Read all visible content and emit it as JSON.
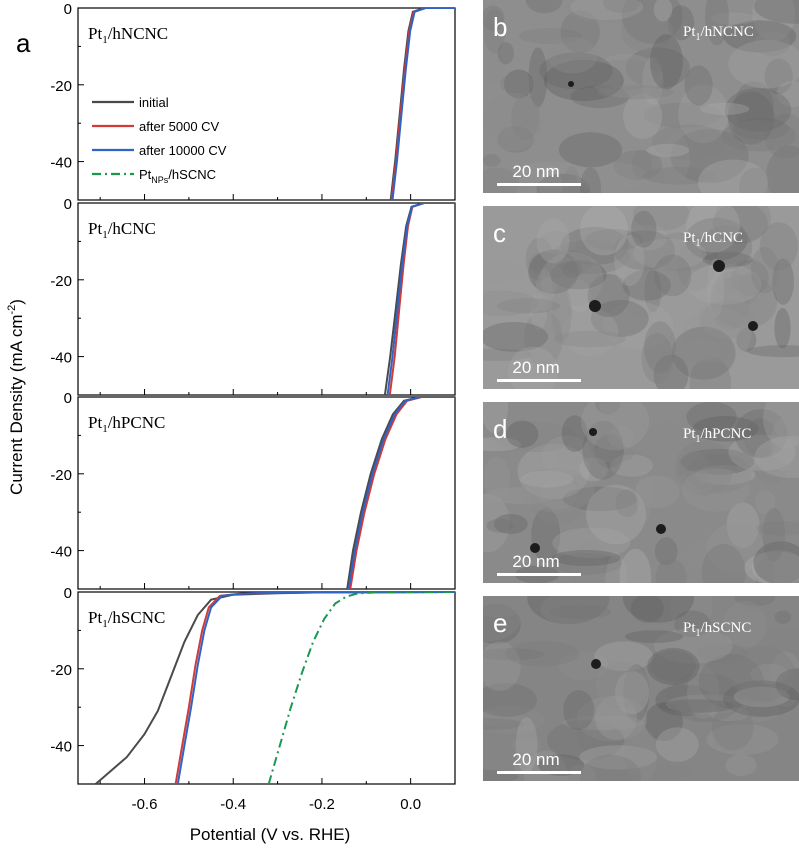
{
  "figure": {
    "main_label": "a",
    "xlabel": "Potential (V vs. RHE)",
    "ylabel": "Current Density (mA cm",
    "ylabel_sup": "-2",
    "ylabel_close": ")"
  },
  "chart_data": {
    "type": "line",
    "x_ticks": [
      "-0.6",
      "-0.4",
      "-0.2",
      "0.0"
    ],
    "xlim": [
      -0.75,
      0.1
    ],
    "ylim": [
      -50,
      0
    ],
    "legend": [
      {
        "label": "initial",
        "color": "#4a4a4a",
        "style": "solid"
      },
      {
        "label": "after 5000 CV",
        "color": "#d23a3a",
        "style": "solid"
      },
      {
        "label": "after 10000 CV",
        "color": "#2f63c4",
        "style": "solid"
      },
      {
        "label_main": "Pt",
        "label_sub": "NPs",
        "label_rest": "/hSCNC",
        "color": "#1a9850",
        "style": "dashdot"
      }
    ],
    "panels": [
      {
        "name_main": "Pt",
        "name_sub": "1",
        "name_rest": "/hNCNC",
        "y_ticks": [
          "0",
          "-20",
          "-40"
        ],
        "series": [
          {
            "key": "initial",
            "x": [
              -0.045,
              -0.035,
              -0.025,
              -0.015,
              -0.005,
              0.005,
              0.03,
              0.1
            ],
            "y": [
              -50,
              -40,
              -28,
              -16,
              -6,
              -1,
              0,
              0
            ]
          },
          {
            "key": "after_5000",
            "x": [
              -0.043,
              -0.033,
              -0.023,
              -0.013,
              -0.003,
              0.007,
              0.032,
              0.1
            ],
            "y": [
              -50,
              -40,
              -28,
              -16,
              -6,
              -1,
              0,
              0
            ]
          },
          {
            "key": "after_10000",
            "x": [
              -0.041,
              -0.031,
              -0.021,
              -0.011,
              -0.001,
              0.009,
              0.034,
              0.1
            ],
            "y": [
              -50,
              -40,
              -28,
              -16,
              -6,
              -1,
              0,
              0
            ]
          }
        ]
      },
      {
        "name_main": "Pt",
        "name_sub": "1",
        "name_rest": "/hCNC",
        "y_ticks": [
          "0",
          "-20",
          "-40"
        ],
        "series": [
          {
            "key": "initial",
            "x": [
              -0.058,
              -0.046,
              -0.034,
              -0.022,
              -0.01,
              0.002,
              0.03,
              0.1
            ],
            "y": [
              -50,
              -40,
              -28,
              -16,
              -6,
              -1,
              0,
              0
            ]
          },
          {
            "key": "after_5000",
            "x": [
              -0.047,
              -0.036,
              -0.026,
              -0.016,
              -0.006,
              0.004,
              0.03,
              0.1
            ],
            "y": [
              -50,
              -40,
              -28,
              -16,
              -6,
              -1,
              0,
              0
            ]
          },
          {
            "key": "after_10000",
            "x": [
              -0.052,
              -0.041,
              -0.03,
              -0.019,
              -0.008,
              0.003,
              0.03,
              0.1
            ],
            "y": [
              -50,
              -40,
              -28,
              -16,
              -6,
              -1,
              0,
              0
            ]
          }
        ]
      },
      {
        "name_main": "Pt",
        "name_sub": "1",
        "name_rest": "/hPCNC",
        "y_ticks": [
          "0",
          "-20",
          "-40"
        ],
        "series": [
          {
            "key": "initial",
            "x": [
              -0.143,
              -0.13,
              -0.112,
              -0.09,
              -0.065,
              -0.04,
              -0.015,
              0.02,
              0.1
            ],
            "y": [
              -50,
              -40,
              -30,
              -20,
              -11,
              -4.5,
              -1,
              0,
              0
            ]
          },
          {
            "key": "after_5000",
            "x": [
              -0.136,
              -0.122,
              -0.104,
              -0.082,
              -0.057,
              -0.032,
              -0.008,
              0.025,
              0.1
            ],
            "y": [
              -50,
              -40,
              -30,
              -20,
              -11,
              -4.5,
              -1,
              0,
              0
            ]
          },
          {
            "key": "after_10000",
            "x": [
              -0.14,
              -0.126,
              -0.108,
              -0.086,
              -0.061,
              -0.036,
              -0.012,
              0.022,
              0.1
            ],
            "y": [
              -50,
              -40,
              -30,
              -20,
              -11,
              -4.5,
              -1,
              0,
              0
            ]
          }
        ]
      },
      {
        "name_main": "Pt",
        "name_sub": "1",
        "name_rest": "/hSCNC",
        "y_ticks": [
          "0",
          "-20",
          "-40"
        ],
        "series": [
          {
            "key": "initial",
            "x": [
              -0.71,
              -0.68,
              -0.64,
              -0.6,
              -0.57,
              -0.54,
              -0.51,
              -0.48,
              -0.45,
              -0.4,
              -0.3,
              -0.2,
              0.1
            ],
            "y": [
              -50,
              -47,
              -43,
              -37,
              -31,
              -22,
              -13,
              -6,
              -2,
              -0.7,
              -0.3,
              -0.1,
              0
            ]
          },
          {
            "key": "after_5000",
            "x": [
              -0.53,
              -0.515,
              -0.5,
              -0.485,
              -0.47,
              -0.455,
              -0.43,
              -0.38,
              -0.3,
              -0.2,
              0.1
            ],
            "y": [
              -50,
              -40,
              -30,
              -19,
              -10,
              -4,
              -1,
              -0.4,
              -0.2,
              -0.1,
              0
            ]
          },
          {
            "key": "after_10000",
            "x": [
              -0.525,
              -0.51,
              -0.495,
              -0.48,
              -0.465,
              -0.45,
              -0.425,
              -0.375,
              -0.3,
              -0.2,
              0.1
            ],
            "y": [
              -50,
              -40,
              -30,
              -19,
              -10,
              -4,
              -1,
              -0.4,
              -0.2,
              -0.1,
              0
            ]
          },
          {
            "key": "pt_nps",
            "x": [
              -0.32,
              -0.295,
              -0.27,
              -0.245,
              -0.22,
              -0.195,
              -0.17,
              -0.145,
              -0.12,
              -0.08,
              0.0,
              0.1
            ],
            "y": [
              -50,
              -40,
              -30,
              -21,
              -13,
              -7,
              -3,
              -1.2,
              -0.4,
              -0.1,
              0,
              0
            ]
          }
        ]
      }
    ]
  },
  "tem_panels": [
    {
      "letter": "b",
      "name_main": "Pt",
      "name_sub": "1",
      "name_rest": "/hNCNC",
      "scale": "20 nm",
      "bg": "#8e8e8e"
    },
    {
      "letter": "c",
      "name_main": "Pt",
      "name_sub": "1",
      "name_rest": "/hCNC",
      "scale": "20 nm",
      "bg": "#9a9a9a"
    },
    {
      "letter": "d",
      "name_main": "Pt",
      "name_sub": "1",
      "name_rest": "/hPCNC",
      "scale": "20 nm",
      "bg": "#8a8a8a"
    },
    {
      "letter": "e",
      "name_main": "Pt",
      "name_sub": "1",
      "name_rest": "/hSCNC",
      "scale": "20 nm",
      "bg": "#858585"
    }
  ]
}
